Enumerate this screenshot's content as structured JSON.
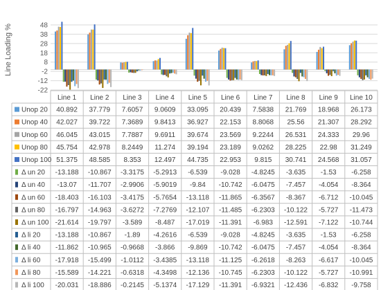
{
  "chart_data": {
    "type": "bar",
    "ylabel": "Line Loading %",
    "yticks": [
      48,
      38,
      28,
      18,
      8,
      -2,
      -12,
      -22
    ],
    "ylim": [
      -22,
      48
    ],
    "categories": [
      "Line 1",
      "Line 2",
      "Line 3",
      "Line 4",
      "Line 5",
      "Line 6",
      "Line 7",
      "Line 8",
      "Line 9",
      "Line 10"
    ],
    "data_table": true,
    "series": [
      {
        "name": "Unop 20",
        "color": "#5b9bd5",
        "legend_shape": "square",
        "labels": [
          "40.892",
          "37.779",
          "7.6057",
          "9.0609",
          "33.095",
          "20.439",
          "7.5838",
          "21.769",
          "18.968",
          "26.173"
        ],
        "values": [
          40.892,
          37.779,
          7.6057,
          9.0609,
          33.095,
          20.439,
          7.5838,
          21.769,
          18.968,
          26.173
        ]
      },
      {
        "name": "Unop 40",
        "color": "#ed7d31",
        "legend_shape": "square",
        "labels": [
          "42.027",
          "39.722",
          "7.3689",
          "9.8413",
          "36.927",
          "22.153",
          "8.8068",
          "25.56",
          "21.307",
          "28.292"
        ],
        "values": [
          42.027,
          39.722,
          7.3689,
          9.8413,
          36.927,
          22.153,
          8.8068,
          25.56,
          21.307,
          28.292
        ]
      },
      {
        "name": "Unop 60",
        "color": "#a5a5a5",
        "legend_shape": "square",
        "labels": [
          "46.045",
          "43.015",
          "7.7887",
          "9.6911",
          "39.674",
          "23.569",
          "9.2244",
          "26.531",
          "24.333",
          "29.96"
        ],
        "values": [
          46.045,
          43.015,
          7.7887,
          9.6911,
          39.674,
          23.569,
          9.2244,
          26.531,
          24.333,
          29.96
        ]
      },
      {
        "name": "Unop 80",
        "color": "#ffc000",
        "legend_shape": "square",
        "labels": [
          "45.754",
          "42.978",
          "8.2449",
          "11.274",
          "39.194",
          "23.189",
          "9.0262",
          "28.225",
          "22.98",
          "31.249"
        ],
        "values": [
          45.754,
          42.978,
          8.2449,
          11.274,
          39.194,
          23.189,
          9.0262,
          28.225,
          22.98,
          31.249
        ]
      },
      {
        "name": "Unop 100",
        "color": "#4472c4",
        "legend_shape": "square",
        "labels": [
          "51.375",
          "48.585",
          "8.353",
          "12.497",
          "44.735",
          "22.953",
          "9.815",
          "30.741",
          "24.568",
          "31.057"
        ],
        "values": [
          51.375,
          48.585,
          8.353,
          12.497,
          44.735,
          22.953,
          9.815,
          30.741,
          24.568,
          31.057
        ]
      },
      {
        "name": "Δ un 20",
        "color": "#70ad47",
        "legend_shape": "bar",
        "labels": [
          "-13.188",
          "-10.867",
          "-3.3175",
          "-5.2913",
          "-6.539",
          "-9.028",
          "-4.8245",
          "-3.635",
          "-1.53",
          "-6.258"
        ],
        "values": [
          -13.188,
          -10.867,
          -3.3175,
          -5.2913,
          -6.539,
          -9.028,
          -4.8245,
          -3.635,
          -1.53,
          -6.258
        ]
      },
      {
        "name": "Δ un 40",
        "color": "#264478",
        "legend_shape": "bar",
        "labels": [
          "-13.07",
          "-11.707",
          "-2.9906",
          "-5.9019",
          "-9.84",
          "-10.742",
          "-6.0475",
          "-7.457",
          "-4.054",
          "-8.364"
        ],
        "values": [
          -13.07,
          -11.707,
          -2.9906,
          -5.9019,
          -9.84,
          -10.742,
          -6.0475,
          -7.457,
          -4.054,
          -8.364
        ]
      },
      {
        "name": "Δ un 60",
        "color": "#9e480e",
        "legend_shape": "bar",
        "labels": [
          "-18.403",
          "-16.103",
          "-3.4175",
          "-5.7654",
          "-13.118",
          "-11.865",
          "-6.3567",
          "-8.367",
          "-6.712",
          "-10.045"
        ],
        "values": [
          -18.403,
          -16.103,
          -3.4175,
          -5.7654,
          -13.118,
          -11.865,
          -6.3567,
          -8.367,
          -6.712,
          -10.045
        ]
      },
      {
        "name": "Δ un 80",
        "color": "#636363",
        "legend_shape": "bar",
        "labels": [
          "-16.797",
          "-14.963",
          "-3.6272",
          "-7.2769",
          "-12.107",
          "-11.485",
          "-6.2303",
          "-10.122",
          "-5.727",
          "-11.473"
        ],
        "values": [
          -16.797,
          -14.963,
          -3.6272,
          -7.2769,
          -12.107,
          -11.485,
          -6.2303,
          -10.122,
          -5.727,
          -11.473
        ]
      },
      {
        "name": "Δ un 100",
        "color": "#997300",
        "legend_shape": "bar",
        "labels": [
          "-21.614",
          "-19.797",
          "-3.589",
          "-8.487",
          "-17.019",
          "-11.391",
          "-6.983",
          "-12.591",
          "-7.122",
          "-10.744"
        ],
        "values": [
          -21.614,
          -19.797,
          -3.589,
          -8.487,
          -17.019,
          -11.391,
          -6.983,
          -12.591,
          -7.122,
          -10.744
        ]
      },
      {
        "name": "Δ li 20",
        "color": "#255e91",
        "legend_shape": "bar",
        "labels": [
          "-13.188",
          "-10.867",
          "-1.89",
          "-4.2616",
          "-6.539",
          "-9.028",
          "-4.8245",
          "-3.635",
          "-1.53",
          "-6.258"
        ],
        "values": [
          -13.188,
          -10.867,
          -1.89,
          -4.2616,
          -6.539,
          -9.028,
          -4.8245,
          -3.635,
          -1.53,
          -6.258
        ]
      },
      {
        "name": "Δ li 40",
        "color": "#43682b",
        "legend_shape": "bar",
        "labels": [
          "-11.862",
          "-10.965",
          "-0.9668",
          "-3.866",
          "-9.869",
          "-10.742",
          "-6.0475",
          "-7.457",
          "-4.054",
          "-8.364"
        ],
        "values": [
          -11.862,
          -10.965,
          -0.9668,
          -3.866,
          -9.869,
          -10.742,
          -6.0475,
          -7.457,
          -4.054,
          -8.364
        ]
      },
      {
        "name": "Δ li 60",
        "color": "#7cafdd",
        "legend_shape": "bar",
        "labels": [
          "-17.918",
          "-15.499",
          "-1.0112",
          "-3.4385",
          "-13.118",
          "-11.125",
          "-6.2618",
          "-8.263",
          "-6.617",
          "-10.045"
        ],
        "values": [
          -17.918,
          -15.499,
          -1.0112,
          -3.4385,
          -13.118,
          -11.125,
          -6.2618,
          -8.263,
          -6.617,
          -10.045
        ]
      },
      {
        "name": "Δ li 80",
        "color": "#f1975a",
        "legend_shape": "bar",
        "labels": [
          "-15.589",
          "-14.221",
          "-0.6318",
          "-4.3498",
          "-12.136",
          "-10.745",
          "-6.2303",
          "-10.122",
          "-5.727",
          "-10.991"
        ],
        "values": [
          -15.589,
          -14.221,
          -0.6318,
          -4.3498,
          -12.136,
          -10.745,
          -6.2303,
          -10.122,
          -5.727,
          -10.991
        ]
      },
      {
        "name": "Δ li 100",
        "color": "#b7b7b7",
        "legend_shape": "bar",
        "labels": [
          "-20.031",
          "-18.886",
          "-0.2145",
          "-5.1374",
          "-17.129",
          "-11.391",
          "-6.9321",
          "-12.436",
          "-6.832",
          "-9.758"
        ],
        "values": [
          -20.031,
          -18.886,
          -0.2145,
          -5.1374,
          -17.129,
          -11.391,
          -6.9321,
          -12.436,
          -6.832,
          -9.758
        ]
      }
    ]
  }
}
